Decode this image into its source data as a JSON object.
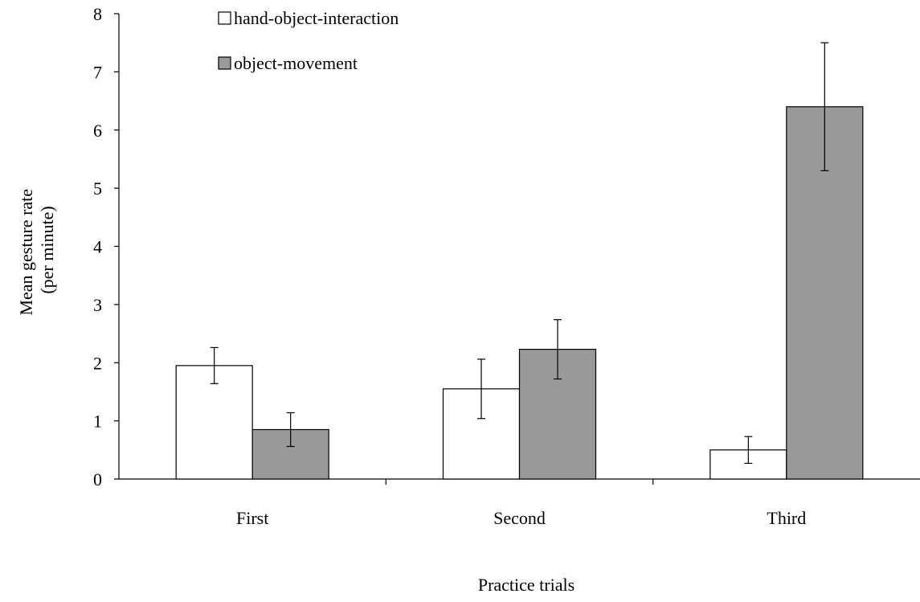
{
  "chart_data": {
    "type": "bar",
    "categories": [
      "First",
      "Second",
      "Third"
    ],
    "series": [
      {
        "name": "hand-object-interaction",
        "color": "#ffffff",
        "values": [
          1.95,
          1.55,
          0.5
        ],
        "errors": [
          0.31,
          0.51,
          0.23
        ]
      },
      {
        "name": "object-movement",
        "color": "#999999",
        "values": [
          0.85,
          2.23,
          6.4
        ],
        "errors": [
          0.29,
          0.51,
          1.1
        ]
      }
    ],
    "title": "",
    "xlabel": "Practice trials",
    "ylabel_lines": [
      "Mean gesture rate",
      "(per minute)"
    ],
    "ylim": [
      0,
      8
    ],
    "yticks": [
      0,
      1,
      2,
      3,
      4,
      5,
      6,
      7,
      8
    ],
    "grid": false,
    "legend_position": "top-left"
  }
}
